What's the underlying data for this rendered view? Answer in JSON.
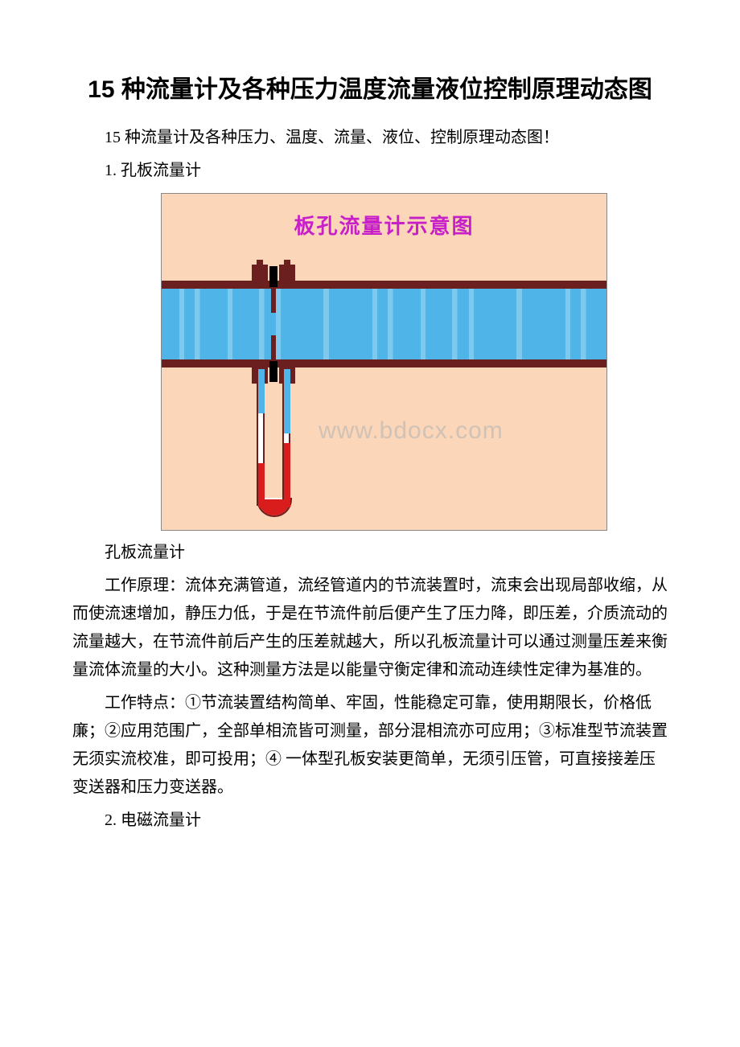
{
  "document": {
    "title": "15 种流量计及各种压力温度流量液位控制原理动态图",
    "intro": "15 种流量计及各种压力、温度、流量、液位、控制原理动态图！",
    "section1_heading": "1. 孔板流量计",
    "diagram": {
      "title": "板孔流量计示意图",
      "title_color": "#c820c8",
      "background_color": "#fbd6b8",
      "pipe_color": "#6b1f1f",
      "fluid_color": "#4fb5e8",
      "mercury_color": "#d91c1c",
      "watermark": "www.bdocx.com"
    },
    "caption": "孔板流量计",
    "principle": "工作原理：流体充满管道，流经管道内的节流装置时，流束会出现局部收缩，从而使流速增加，静压力低，于是在节流件前后便产生了压力降，即压差，介质流动的流量越大，在节流件前后产生的压差就越大，所以孔板流量计可以通过测量压差来衡量流体流量的大小。这种测量方法是以能量守衡定律和流动连续性定律为基准的。",
    "features": "工作特点：①节流装置结构简单、牢固，性能稳定可靠，使用期限长，价格低廉；②应用范围广，全部单相流皆可测量，部分混相流亦可应用；③标准型节流装置无须实流校准，即可投用；④ 一体型孔板安装更简单，无须引压管，可直接接差压变送器和压力变送器。",
    "section2_heading": "2. 电磁流量计"
  }
}
